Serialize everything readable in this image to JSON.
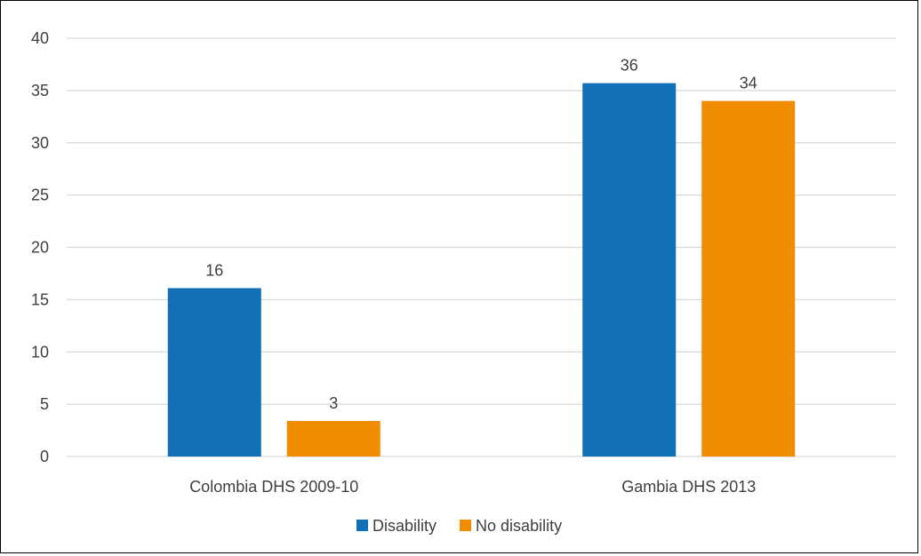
{
  "chart_data": {
    "type": "bar",
    "title": "",
    "xlabel": "",
    "ylabel": "",
    "categories": [
      "Colombia DHS 2009-10",
      "Gambia DHS 2013"
    ],
    "series": [
      {
        "name": "Disability",
        "color": "#1170b6",
        "values": [
          16.1,
          35.7
        ],
        "labels": [
          "16",
          "36"
        ]
      },
      {
        "name": "No disability",
        "color": "#f08c00",
        "values": [
          3.4,
          34.0
        ],
        "labels": [
          "3",
          "34"
        ]
      }
    ],
    "ylim": [
      0,
      40
    ],
    "yticks": [
      0,
      5,
      10,
      15,
      20,
      25,
      30,
      35,
      40
    ],
    "grid": true,
    "legend": "bottom-center"
  }
}
